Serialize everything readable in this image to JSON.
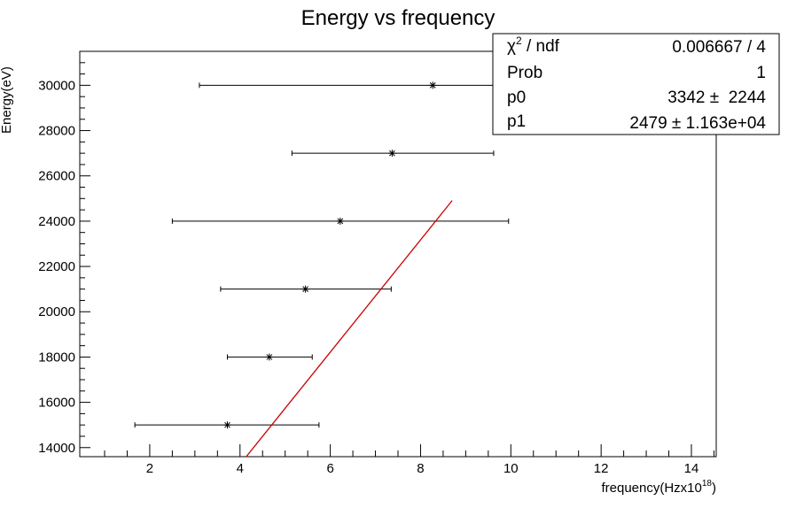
{
  "chart_data": {
    "type": "scatter",
    "title": "Energy vs frequency",
    "xlabel": "frequency(Hzx10",
    "xlabel_sup": "18",
    "xlabel_close": ")",
    "ylabel": "Energy(eV)",
    "xlim": [
      0.45,
      14.55
    ],
    "ylim": [
      13600,
      31500
    ],
    "x_ticks": [
      2,
      4,
      6,
      8,
      10,
      12,
      14
    ],
    "y_ticks": [
      14000,
      16000,
      18000,
      20000,
      22000,
      24000,
      26000,
      28000,
      30000
    ],
    "points": [
      {
        "x": 3.72,
        "y": 15000,
        "xerr_low": 1.67,
        "xerr_high": 5.75
      },
      {
        "x": 4.65,
        "y": 18000,
        "xerr_low": 3.72,
        "xerr_high": 5.6
      },
      {
        "x": 5.45,
        "y": 21000,
        "xerr_low": 3.57,
        "xerr_high": 7.35
      },
      {
        "x": 6.22,
        "y": 24000,
        "xerr_low": 2.5,
        "xerr_high": 9.95
      },
      {
        "x": 7.37,
        "y": 27000,
        "xerr_low": 5.15,
        "xerr_high": 9.62
      },
      {
        "x": 8.27,
        "y": 30000,
        "xerr_low": 3.1,
        "xerr_high": 11.4
      }
    ],
    "fit_line": {
      "p0": 3342,
      "p1": 2479,
      "x_range": [
        3.3,
        8.7
      ]
    },
    "grid": false,
    "colors": {
      "fit": "#cc0000",
      "markers": "#000000",
      "frame": "#000000"
    },
    "stats_box": {
      "placement": "top-right",
      "rows": [
        {
          "label_prefix": "χ",
          "label_sup": "2",
          "label_suffix": " / ndf",
          "value": "0.006667 / 4"
        },
        {
          "label": "Prob",
          "value": "1"
        },
        {
          "label": "p0",
          "value": "3342 ±  2244"
        },
        {
          "label": "p1",
          "value": "2479 ± 1.163e+04"
        }
      ]
    }
  }
}
